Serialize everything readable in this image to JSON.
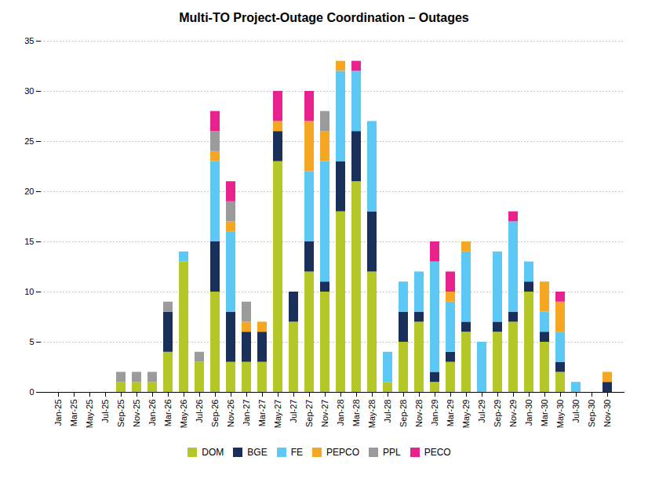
{
  "chart_data": {
    "type": "bar",
    "stacked": true,
    "title": "Multi-TO Project-Outage Coordination – Outages",
    "categories": [
      "Jan-25",
      "Mar-25",
      "May-25",
      "Jul-25",
      "Sep-25",
      "Nov-25",
      "Jan-26",
      "Mar-26",
      "May-26",
      "Jul-26",
      "Sep-26",
      "Nov-26",
      "Jan-27",
      "Mar-27",
      "May-27",
      "Jul-27",
      "Sep-27",
      "Nov-27",
      "Jan-28",
      "Mar-28",
      "May-28",
      "Jul-28",
      "Sep-28",
      "Nov-28",
      "Jan-29",
      "Mar-29",
      "May-29",
      "Jul-29",
      "Sep-29",
      "Nov-29",
      "Jan-30",
      "Mar-30",
      "May-30",
      "Jul-30",
      "Sep-30",
      "Nov-30"
    ],
    "series": [
      {
        "name": "DOM",
        "color": "#b5c727",
        "values": [
          0,
          0,
          0,
          0,
          1,
          1,
          1,
          4,
          13,
          3,
          10,
          3,
          3,
          3,
          23,
          7,
          12,
          10,
          18,
          21,
          12,
          1,
          5,
          7,
          1,
          3,
          6,
          0,
          6,
          7,
          10,
          5,
          2,
          0,
          0,
          0
        ]
      },
      {
        "name": "BGE",
        "color": "#1a2f5a",
        "values": [
          0,
          0,
          0,
          0,
          0,
          0,
          0,
          4,
          0,
          0,
          5,
          5,
          3,
          3,
          3,
          3,
          3,
          1,
          5,
          5,
          6,
          0,
          3,
          1,
          1,
          1,
          1,
          0,
          1,
          1,
          1,
          1,
          1,
          0,
          0,
          1
        ]
      },
      {
        "name": "FE",
        "color": "#5bc8f5",
        "values": [
          0,
          0,
          0,
          0,
          0,
          0,
          0,
          0,
          1,
          0,
          8,
          8,
          0,
          0,
          0,
          0,
          7,
          12,
          9,
          6,
          9,
          3,
          3,
          4,
          11,
          5,
          7,
          5,
          7,
          9,
          2,
          2,
          3,
          1,
          0,
          0
        ]
      },
      {
        "name": "PEPCO",
        "color": "#f5a623",
        "values": [
          0,
          0,
          0,
          0,
          0,
          0,
          0,
          0,
          0,
          0,
          1,
          1,
          1,
          1,
          1,
          0,
          5,
          3,
          1,
          0,
          0,
          0,
          0,
          0,
          0,
          1,
          1,
          0,
          0,
          0,
          0,
          3,
          3,
          0,
          0,
          1
        ]
      },
      {
        "name": "PPL",
        "color": "#9b9b9b",
        "values": [
          0,
          0,
          0,
          0,
          1,
          1,
          1,
          1,
          0,
          1,
          2,
          2,
          2,
          0,
          0,
          0,
          0,
          2,
          0,
          0,
          0,
          0,
          0,
          0,
          0,
          0,
          0,
          0,
          0,
          0,
          0,
          0,
          0,
          0,
          0,
          0
        ]
      },
      {
        "name": "PECO",
        "color": "#e8218c",
        "values": [
          0,
          0,
          0,
          0,
          0,
          0,
          0,
          0,
          0,
          0,
          2,
          2,
          0,
          0,
          3,
          0,
          3,
          0,
          0,
          1,
          0,
          0,
          0,
          0,
          2,
          2,
          0,
          0,
          0,
          1,
          0,
          0,
          1,
          0,
          0,
          0
        ]
      }
    ],
    "ylim": [
      0,
      35
    ],
    "yticks": [
      0,
      5,
      10,
      15,
      20,
      25,
      30,
      35
    ],
    "grid": true,
    "legend": "bottom"
  }
}
